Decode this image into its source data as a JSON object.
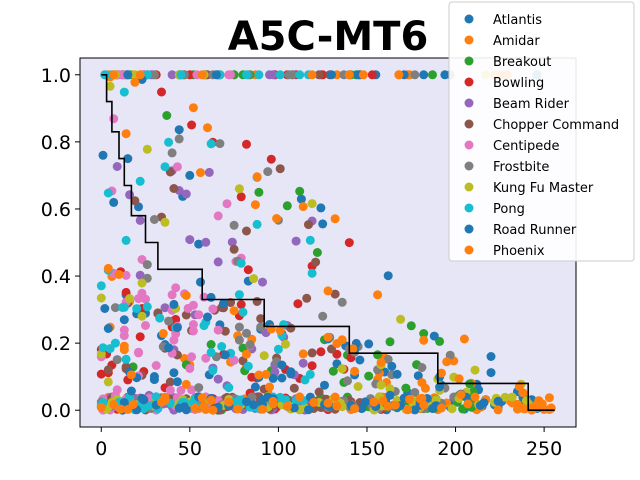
{
  "chart_data": {
    "type": "scatter",
    "title": "A5C-MT6",
    "xlabel": "",
    "ylabel": "",
    "xlim": [
      -12,
      268
    ],
    "ylim": [
      -0.05,
      1.05
    ],
    "x_ticks": [
      0,
      50,
      100,
      150,
      200,
      250
    ],
    "y_ticks": [
      0.0,
      0.2,
      0.4,
      0.6,
      0.8,
      1.0
    ],
    "x_tick_labels": [
      "0",
      "50",
      "100",
      "150",
      "200",
      "250"
    ],
    "y_tick_labels": [
      "0.0",
      "0.2",
      "0.4",
      "0.6",
      "0.8",
      "1.0"
    ],
    "legend_position": "top-right",
    "plot_background": "#e6e6f7",
    "series": [
      {
        "name": "Atlantis",
        "color": "#1f77b4",
        "max_x": 250,
        "seed": 11
      },
      {
        "name": "Amidar",
        "color": "#ff7f0e",
        "max_x": 256,
        "seed": 23
      },
      {
        "name": "Breakout",
        "color": "#2ca02c",
        "max_x": 215,
        "seed": 37
      },
      {
        "name": "Bowling",
        "color": "#d62728",
        "max_x": 160,
        "seed": 41
      },
      {
        "name": "Beam Rider",
        "color": "#9467bd",
        "max_x": 120,
        "seed": 53
      },
      {
        "name": "Chopper Command",
        "color": "#8c564b",
        "max_x": 150,
        "seed": 67
      },
      {
        "name": "Centipede",
        "color": "#e377c2",
        "max_x": 90,
        "seed": 71
      },
      {
        "name": "Frostbite",
        "color": "#7f7f7f",
        "max_x": 200,
        "seed": 83
      },
      {
        "name": "Kung Fu Master",
        "color": "#bcbd22",
        "max_x": 245,
        "seed": 97
      },
      {
        "name": "Pong",
        "color": "#17becf",
        "max_x": 120,
        "seed": 101
      },
      {
        "name": "Road Runner",
        "color": "#1f77b4",
        "max_x": 225,
        "seed": 113
      },
      {
        "name": "Phoenix",
        "color": "#ff7f0e",
        "max_x": 256,
        "seed": 127
      }
    ],
    "step_line": {
      "color": "#000000",
      "x": [
        0,
        3,
        3,
        6,
        6,
        10,
        10,
        13,
        13,
        17,
        17,
        25,
        25,
        32,
        32,
        57,
        57,
        92,
        92,
        140,
        140,
        190,
        190,
        241,
        241,
        256
      ],
      "y": [
        1.0,
        1.0,
        0.92,
        0.92,
        0.83,
        0.83,
        0.75,
        0.75,
        0.67,
        0.67,
        0.58,
        0.58,
        0.5,
        0.5,
        0.42,
        0.42,
        0.33,
        0.33,
        0.25,
        0.25,
        0.17,
        0.17,
        0.08,
        0.08,
        0.0,
        0.0
      ]
    }
  }
}
